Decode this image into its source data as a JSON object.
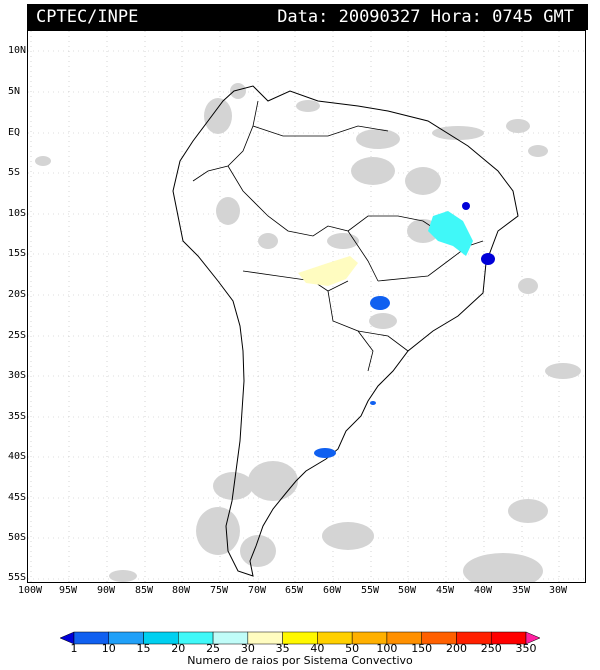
{
  "header": {
    "org": "CPTEC/INPE",
    "stamp": "Data: 20090327 Hora: 0745 GMT"
  },
  "axes": {
    "lat_labels": [
      "10N",
      "5N",
      "EQ",
      "5S",
      "10S",
      "15S",
      "20S",
      "25S",
      "30S",
      "35S",
      "40S",
      "45S",
      "50S",
      "55S"
    ],
    "lon_labels": [
      "100W",
      "95W",
      "90W",
      "85W",
      "80W",
      "75W",
      "70W",
      "65W",
      "60W",
      "55W",
      "50W",
      "45W",
      "40W",
      "35W",
      "30W"
    ]
  },
  "legend": {
    "ticks": [
      "1",
      "10",
      "15",
      "20",
      "25",
      "30",
      "35",
      "40",
      "50",
      "100",
      "150",
      "200",
      "250",
      "350"
    ],
    "caption": "Numero de raios por Sistema Convectivo",
    "colors": [
      "#0000d8",
      "#1060f0",
      "#20a0f8",
      "#00d0f0",
      "#40f8f8",
      "#c0fcf8",
      "#fffcc0",
      "#fff800",
      "#ffd000",
      "#ffb000",
      "#ff9000",
      "#ff6000",
      "#ff2000",
      "#ff0000",
      "#ff20a0"
    ]
  },
  "map": {
    "cloud_color": "#d0d0d0",
    "coast_color": "#000000"
  }
}
